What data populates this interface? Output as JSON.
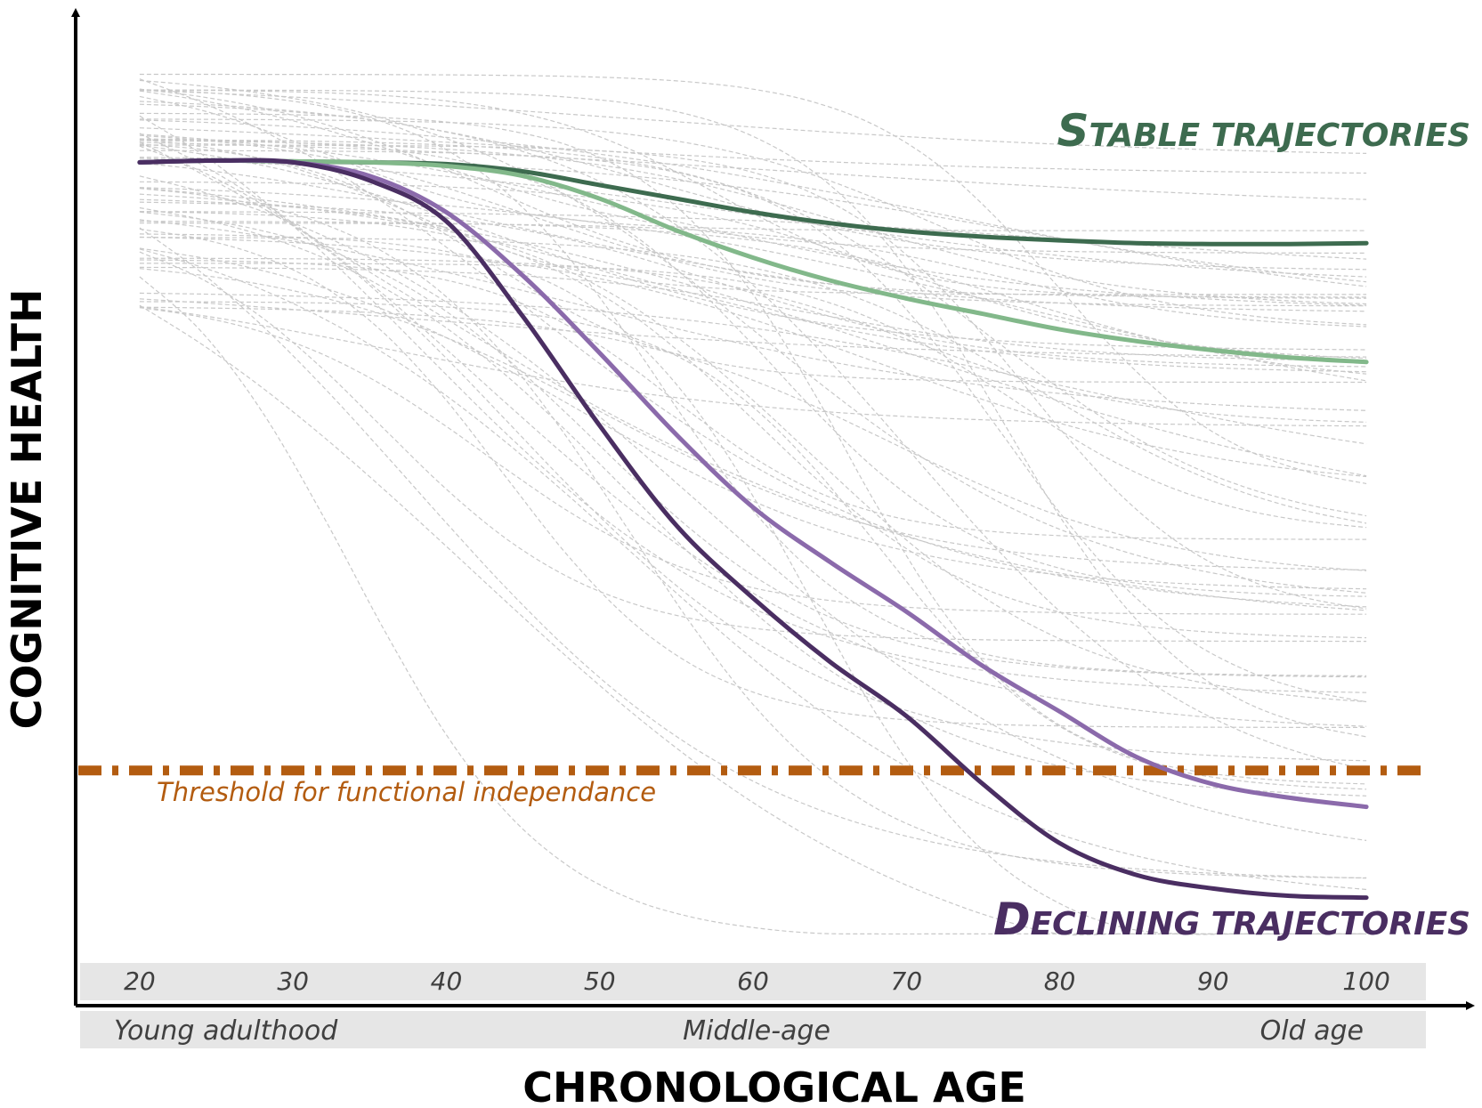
{
  "colors": {
    "stable_dark": "#3d6b4f",
    "stable_light": "#82b88a",
    "declining_dark": "#4a2e62",
    "declining_light": "#8b6aab",
    "threshold": "#b35c10",
    "background_lines": "#c8c8c8",
    "band": "#e6e6e6"
  },
  "chart_data": {
    "type": "line",
    "xlabel": "CHRONOLOGICAL AGE",
    "ylabel": "COGNITIVE HEALTH",
    "xlim": [
      16,
      104
    ],
    "ylim": [
      0,
      100
    ],
    "x_ticks": [
      20,
      30,
      40,
      50,
      60,
      70,
      80,
      90,
      100
    ],
    "phases": [
      "Young adulthood",
      "Middle-age",
      "Old age"
    ],
    "annotations": {
      "stable": "Stable trajectories",
      "declining": "Declining trajectories"
    },
    "threshold": {
      "label": "Threshold for functional independance",
      "y": 21
    },
    "series": [
      {
        "key": "stable_dark",
        "x": [
          20,
          25,
          30,
          35,
          40,
          45,
          50,
          55,
          60,
          65,
          70,
          75,
          80,
          85,
          90,
          95,
          100
        ],
        "values": [
          88,
          88.2,
          88.1,
          88,
          87.8,
          87,
          85.5,
          84,
          82.5,
          81.3,
          80.4,
          79.8,
          79.4,
          79.1,
          79,
          79,
          79.1
        ]
      },
      {
        "key": "stable_light",
        "x": [
          20,
          25,
          30,
          35,
          40,
          45,
          50,
          55,
          60,
          65,
          70,
          75,
          80,
          85,
          90,
          95,
          100
        ],
        "values": [
          88,
          88.2,
          88.1,
          88,
          87.6,
          86.5,
          84,
          80.5,
          77.5,
          75,
          73,
          71.3,
          69.6,
          68.3,
          67.3,
          66.5,
          66
        ]
      },
      {
        "key": "declining_light",
        "x": [
          20,
          25,
          30,
          35,
          40,
          45,
          50,
          55,
          60,
          65,
          70,
          75,
          80,
          85,
          90,
          95,
          100
        ],
        "values": [
          88,
          88.2,
          88,
          86.5,
          82.5,
          75.5,
          67,
          58,
          50,
          44,
          38.5,
          32.5,
          27.5,
          22.5,
          19.5,
          18,
          17
        ]
      },
      {
        "key": "declining_dark",
        "x": [
          20,
          25,
          30,
          35,
          40,
          45,
          50,
          55,
          60,
          65,
          70,
          75,
          80,
          85,
          90,
          95,
          100
        ],
        "values": [
          88,
          88.2,
          88,
          86,
          81.5,
          71,
          59,
          48,
          40,
          33,
          27,
          19.5,
          13,
          9.5,
          8,
          7.2,
          7
        ]
      }
    ]
  }
}
